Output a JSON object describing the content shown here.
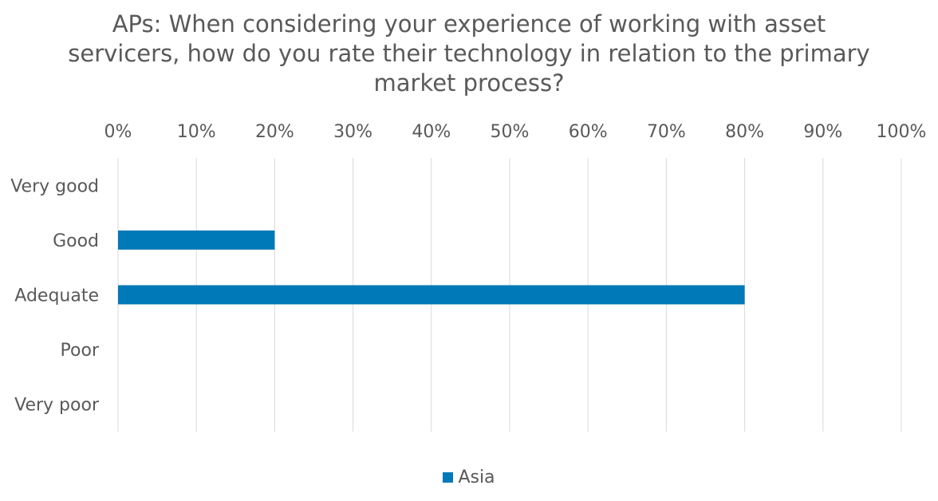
{
  "chart_data": {
    "type": "bar",
    "orientation": "horizontal",
    "title_lines": [
      "APs: When considering your experience of working with asset",
      "servicers, how do you rate their technology in relation to the primary",
      "market process?"
    ],
    "categories": [
      "Very good",
      "Good",
      "Adequate",
      "Poor",
      "Very poor"
    ],
    "series": [
      {
        "name": "Asia",
        "values": [
          0,
          20,
          80,
          0,
          0
        ],
        "color": "#0079b8"
      }
    ],
    "x_ticks": [
      "0%",
      "10%",
      "20%",
      "30%",
      "40%",
      "50%",
      "60%",
      "70%",
      "80%",
      "90%",
      "100%"
    ],
    "xlim": [
      0,
      100
    ],
    "x_axis_position": "top",
    "grid": true,
    "gridline_color": "#d9d9d9",
    "legend_position": "bottom"
  }
}
